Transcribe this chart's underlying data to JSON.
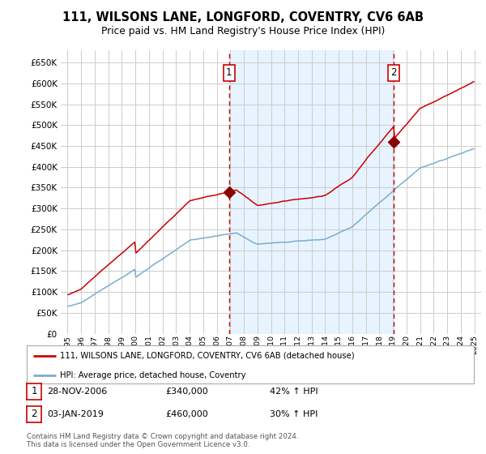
{
  "title": "111, WILSONS LANE, LONGFORD, COVENTRY, CV6 6AB",
  "subtitle": "Price paid vs. HM Land Registry's House Price Index (HPI)",
  "legend_label_red": "111, WILSONS LANE, LONGFORD, COVENTRY, CV6 6AB (detached house)",
  "legend_label_blue": "HPI: Average price, detached house, Coventry",
  "annotation1_label": "1",
  "annotation1_date": "28-NOV-2006",
  "annotation1_price": 340000,
  "annotation1_hpi": "42% ↑ HPI",
  "annotation2_label": "2",
  "annotation2_date": "03-JAN-2019",
  "annotation2_price": 460000,
  "annotation2_hpi": "30% ↑ HPI",
  "footer": "Contains HM Land Registry data © Crown copyright and database right 2024.\nThis data is licensed under the Open Government Licence v3.0.",
  "sale1_x": 2006.917,
  "sale2_x": 2019.042,
  "ylim": [
    0,
    680000
  ],
  "ytick_values": [
    0,
    50000,
    100000,
    150000,
    200000,
    250000,
    300000,
    350000,
    400000,
    450000,
    500000,
    550000,
    600000,
    650000
  ],
  "ytick_labels": [
    "£0",
    "£50K",
    "£100K",
    "£150K",
    "£200K",
    "£250K",
    "£300K",
    "£350K",
    "£400K",
    "£450K",
    "£500K",
    "£550K",
    "£600K",
    "£650K"
  ],
  "background_color": "#ffffff",
  "grid_color": "#cccccc",
  "red_color": "#cc0000",
  "blue_color": "#7aadcc",
  "shade_color": "#ddeeff",
  "vline_color": "#cc0000",
  "marker_color": "#880000"
}
